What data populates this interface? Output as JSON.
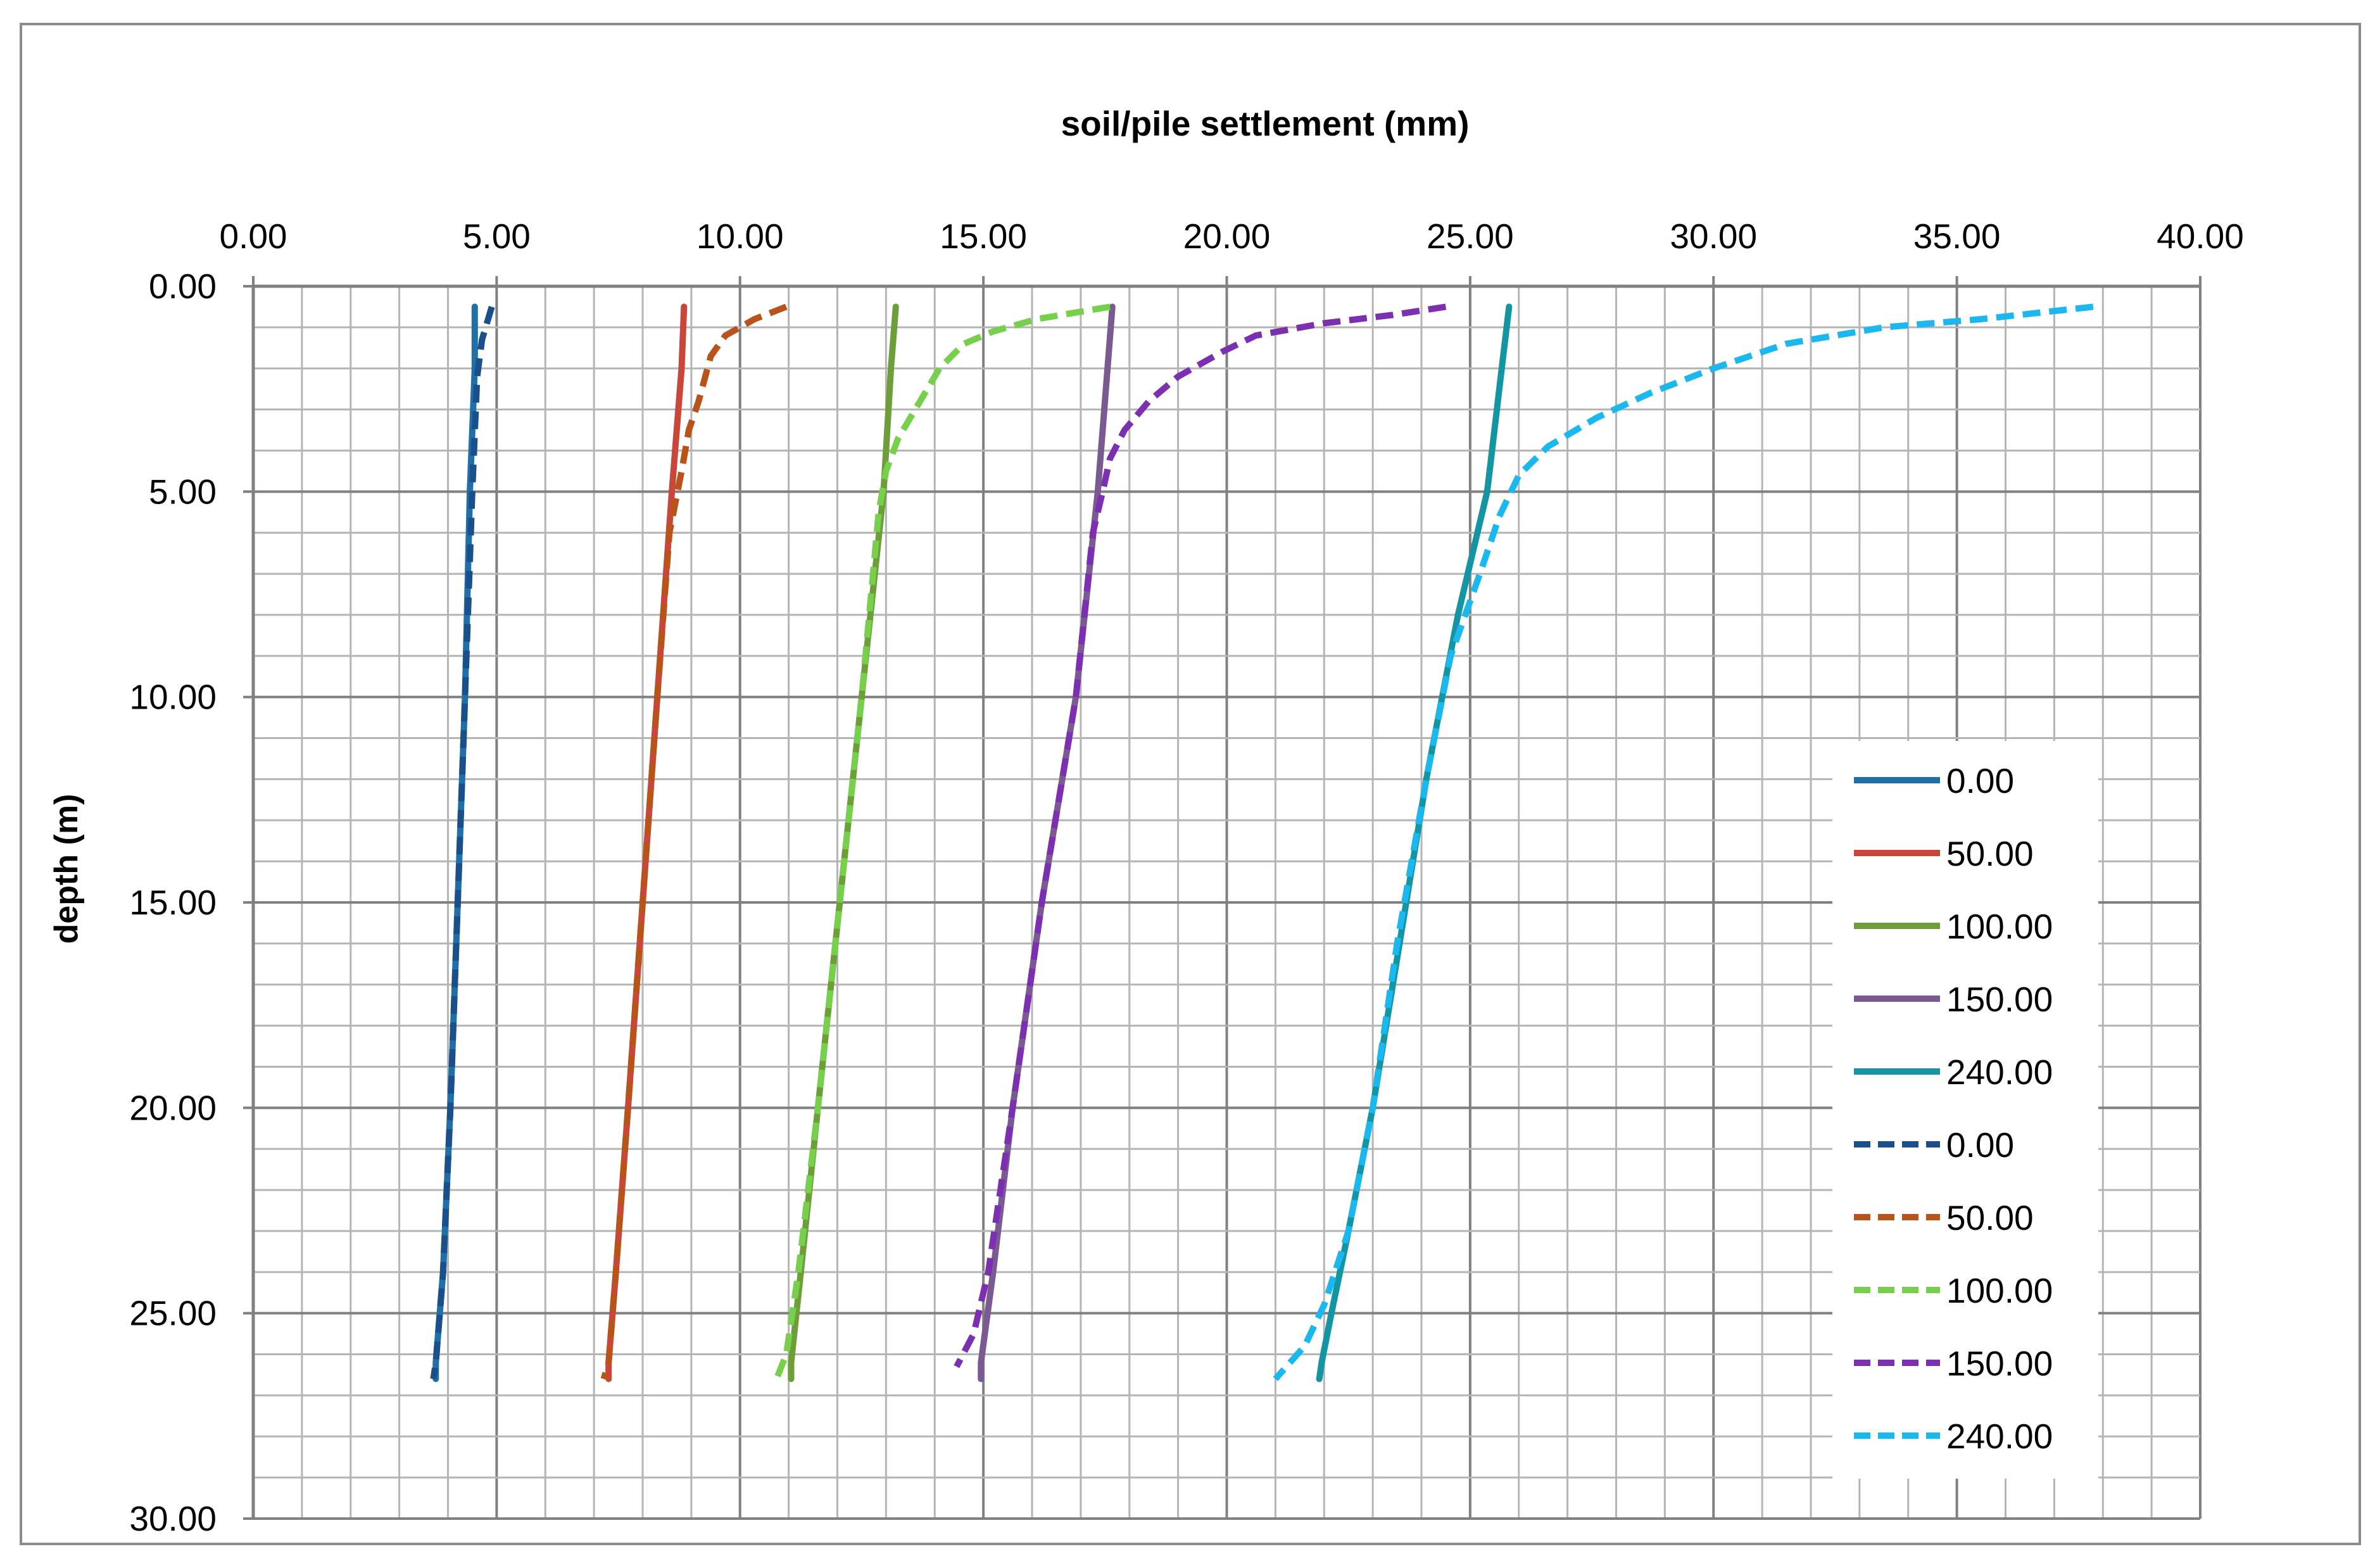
{
  "chart_data": {
    "type": "line",
    "title": "soil/pile  settlement (mm)",
    "xlabel": "",
    "ylabel": "depth (m)",
    "xlim": [
      0,
      40
    ],
    "ylim": [
      0,
      30
    ],
    "y_inverted": true,
    "x_axis_position": "top",
    "x_ticks": [
      "0.00",
      "5.00",
      "10.00",
      "15.00",
      "20.00",
      "25.00",
      "30.00",
      "35.00",
      "40.00"
    ],
    "y_ticks": [
      "0.00",
      "5.00",
      "10.00",
      "15.00",
      "20.00",
      "25.00",
      "30.00"
    ],
    "grid": true,
    "legend_position": "right",
    "series": [
      {
        "name": "0.00",
        "color": "#1f6fa8",
        "style": "solid",
        "points": [
          [
            4.55,
            0.5
          ],
          [
            4.55,
            2
          ],
          [
            4.45,
            5
          ],
          [
            4.35,
            10
          ],
          [
            4.2,
            15
          ],
          [
            4.05,
            20
          ],
          [
            3.9,
            24
          ],
          [
            3.75,
            26.2
          ],
          [
            3.75,
            26.6
          ]
        ]
      },
      {
        "name": "50.00",
        "color": "#c8463a",
        "style": "solid",
        "points": [
          [
            8.85,
            0.5
          ],
          [
            8.8,
            2
          ],
          [
            8.6,
            5
          ],
          [
            8.3,
            10
          ],
          [
            8.0,
            15
          ],
          [
            7.7,
            20
          ],
          [
            7.45,
            24
          ],
          [
            7.3,
            26.2
          ],
          [
            7.3,
            26.6
          ]
        ]
      },
      {
        "name": "100.00",
        "color": "#6d9e3a",
        "style": "solid",
        "points": [
          [
            13.2,
            0.5
          ],
          [
            13.1,
            2
          ],
          [
            12.95,
            5
          ],
          [
            12.5,
            10
          ],
          [
            12.05,
            15
          ],
          [
            11.6,
            20
          ],
          [
            11.25,
            24
          ],
          [
            11.05,
            26.2
          ],
          [
            11.05,
            26.6
          ]
        ]
      },
      {
        "name": "150.00",
        "color": "#7b5a92",
        "style": "solid",
        "points": [
          [
            17.65,
            0.5
          ],
          [
            17.55,
            2
          ],
          [
            17.35,
            5
          ],
          [
            16.9,
            10
          ],
          [
            16.2,
            15
          ],
          [
            15.6,
            20
          ],
          [
            15.2,
            24
          ],
          [
            14.95,
            26.2
          ],
          [
            14.95,
            26.6
          ]
        ]
      },
      {
        "name": "240.00",
        "color": "#1495a3",
        "style": "solid",
        "points": [
          [
            25.8,
            0.5
          ],
          [
            25.65,
            2
          ],
          [
            25.35,
            5
          ],
          [
            24.75,
            8
          ],
          [
            24.1,
            12
          ],
          [
            23.55,
            16
          ],
          [
            23.0,
            20
          ],
          [
            22.5,
            23
          ],
          [
            22.15,
            25
          ],
          [
            21.95,
            26.2
          ],
          [
            21.9,
            26.6
          ]
        ]
      },
      {
        "name": "0.00",
        "color": "#1a4f8a",
        "style": "dashed",
        "points": [
          [
            4.9,
            0.5
          ],
          [
            4.7,
            1.3
          ],
          [
            4.6,
            2.2
          ],
          [
            4.5,
            5
          ],
          [
            4.35,
            10
          ],
          [
            4.2,
            15
          ],
          [
            4.05,
            20
          ],
          [
            3.9,
            24
          ],
          [
            3.75,
            26.2
          ],
          [
            3.7,
            26.6
          ]
        ]
      },
      {
        "name": "50.00",
        "color": "#b8541a",
        "style": "dashed",
        "points": [
          [
            10.95,
            0.5
          ],
          [
            10.3,
            0.8
          ],
          [
            9.7,
            1.2
          ],
          [
            9.4,
            1.7
          ],
          [
            9.15,
            2.8
          ],
          [
            8.95,
            3.5
          ],
          [
            8.8,
            4.5
          ],
          [
            8.55,
            6
          ],
          [
            8.3,
            10
          ],
          [
            8.0,
            15
          ],
          [
            7.7,
            20
          ],
          [
            7.45,
            24
          ],
          [
            7.3,
            26.2
          ],
          [
            7.2,
            26.6
          ]
        ]
      },
      {
        "name": "100.00",
        "color": "#77d04b",
        "style": "dashed",
        "points": [
          [
            17.6,
            0.5
          ],
          [
            17.1,
            0.6
          ],
          [
            16.1,
            0.8
          ],
          [
            15.2,
            1.1
          ],
          [
            14.6,
            1.4
          ],
          [
            14.1,
            2
          ],
          [
            13.6,
            3
          ],
          [
            13.25,
            3.7
          ],
          [
            13.0,
            4.5
          ],
          [
            12.85,
            5.5
          ],
          [
            12.5,
            10
          ],
          [
            12.05,
            15
          ],
          [
            11.6,
            20
          ],
          [
            11.2,
            24
          ],
          [
            10.95,
            26
          ],
          [
            10.75,
            26.6
          ]
        ]
      },
      {
        "name": "150.00",
        "color": "#7c2fb0",
        "style": "dashed",
        "points": [
          [
            24.5,
            0.5
          ],
          [
            23.4,
            0.7
          ],
          [
            22.0,
            0.9
          ],
          [
            20.6,
            1.2
          ],
          [
            19.9,
            1.6
          ],
          [
            19.0,
            2.2
          ],
          [
            18.4,
            2.8
          ],
          [
            17.9,
            3.5
          ],
          [
            17.6,
            4.2
          ],
          [
            17.45,
            5
          ],
          [
            17.25,
            6
          ],
          [
            16.9,
            10
          ],
          [
            16.2,
            15
          ],
          [
            15.6,
            20
          ],
          [
            15.1,
            24
          ],
          [
            14.8,
            25.5
          ],
          [
            14.45,
            26.3
          ]
        ]
      },
      {
        "name": "240.00",
        "color": "#1ab8ef",
        "style": "dashed",
        "points": [
          [
            37.8,
            0.5
          ],
          [
            35.5,
            0.8
          ],
          [
            33.5,
            1.0
          ],
          [
            31.5,
            1.4
          ],
          [
            30.0,
            2.0
          ],
          [
            28.7,
            2.6
          ],
          [
            27.6,
            3.2
          ],
          [
            26.6,
            3.9
          ],
          [
            26.0,
            4.6
          ],
          [
            25.6,
            5.6
          ],
          [
            25.2,
            7
          ],
          [
            24.6,
            9
          ],
          [
            24.1,
            12
          ],
          [
            23.5,
            16
          ],
          [
            23.0,
            20
          ],
          [
            22.5,
            23
          ],
          [
            22.0,
            24.8
          ],
          [
            21.6,
            25.8
          ],
          [
            21.0,
            26.6
          ]
        ]
      }
    ]
  }
}
